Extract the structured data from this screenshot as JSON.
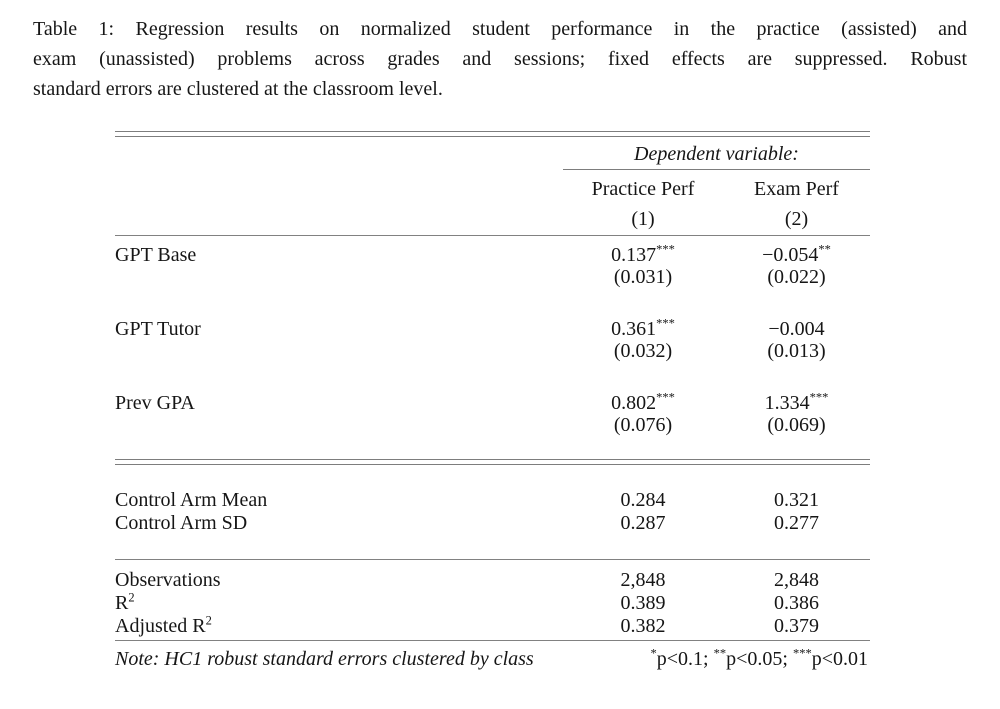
{
  "caption": {
    "lines": [
      "Table 1: Regression results on normalized student performance in the practice (assisted) and",
      "exam (unassisted) problems across grades and sessions; fixed effects are suppressed. Robust",
      "standard errors are clustered at the classroom level."
    ]
  },
  "table": {
    "dependent_variable_label": "Dependent variable:",
    "columns": [
      {
        "name": "Practice Perf",
        "number": "(1)"
      },
      {
        "name": "Exam Perf",
        "number": "(2)"
      }
    ],
    "coefficient_rows": [
      {
        "label": "GPT Base",
        "cells": [
          {
            "est": "0.137",
            "stars": "***",
            "se": "(0.031)"
          },
          {
            "est": "−0.054",
            "stars": "**",
            "se": "(0.022)"
          }
        ]
      },
      {
        "label": "GPT Tutor",
        "cells": [
          {
            "est": "0.361",
            "stars": "***",
            "se": "(0.032)"
          },
          {
            "est": "−0.004",
            "stars": "",
            "se": "(0.013)"
          }
        ]
      },
      {
        "label": "Prev GPA",
        "cells": [
          {
            "est": "0.802",
            "stars": "***",
            "se": "(0.076)"
          },
          {
            "est": "1.334",
            "stars": "***",
            "se": "(0.069)"
          }
        ]
      }
    ],
    "summary_block_1": [
      {
        "label": "Control Arm Mean",
        "label_sup": "",
        "values": [
          "0.284",
          "0.321"
        ]
      },
      {
        "label": "Control Arm SD",
        "label_sup": "",
        "values": [
          "0.287",
          "0.277"
        ]
      }
    ],
    "summary_block_2": [
      {
        "label": "Observations",
        "label_sup": "",
        "values": [
          "2,848",
          "2,848"
        ]
      },
      {
        "label": "R",
        "label_sup": "2",
        "values": [
          "0.389",
          "0.386"
        ]
      },
      {
        "label": "Adjusted R",
        "label_sup": "2",
        "values": [
          "0.382",
          "0.379"
        ]
      }
    ],
    "note": {
      "left": "Note: HC1 robust standard errors clustered by class",
      "significance": [
        {
          "stars": "*",
          "text": "p<0.1; "
        },
        {
          "stars": "**",
          "text": "p<0.05; "
        },
        {
          "stars": "***",
          "text": "p<0.01"
        }
      ]
    }
  }
}
